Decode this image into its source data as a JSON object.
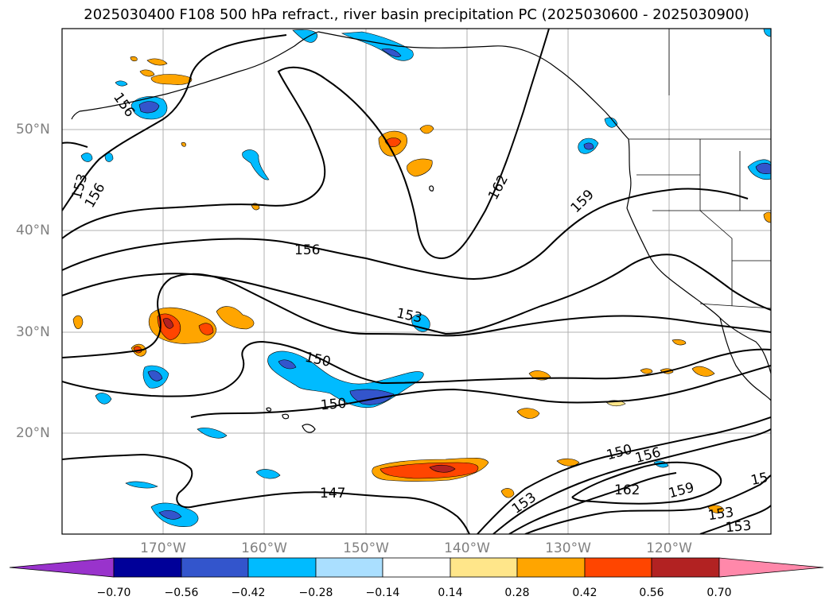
{
  "title": "2025030400 F108 500 hPa refract., river basin precipitation PC (2025030600 - 2025030900)",
  "lat_labels": [
    "50°N",
    "40°N",
    "30°N",
    "20°N"
  ],
  "lon_labels": [
    "170°W",
    "160°W",
    "150°W",
    "140°W",
    "130°W",
    "120°W"
  ],
  "contour_labels": [
    "156",
    "153",
    "156",
    "162",
    "159",
    "156",
    "153",
    "150",
    "150",
    "150",
    "147",
    "153",
    "156",
    "162",
    "159",
    "15",
    "153",
    "153"
  ],
  "colorbar": {
    "ticks": [
      "−0.70",
      "−0.56",
      "−0.42",
      "−0.28",
      "−0.14",
      "0.14",
      "0.28",
      "0.42",
      "0.56",
      "0.70"
    ],
    "colors": [
      "#9933cc",
      "#000099",
      "#3355cc",
      "#00bbff",
      "#aadfff",
      "#ffffff",
      "#ffe68a",
      "#ffa500",
      "#ff4500",
      "#b22222",
      "#ff88aa"
    ]
  },
  "colors": {
    "grid": "#b0b0b0",
    "contour": "#000000",
    "coast": "#000000"
  }
}
